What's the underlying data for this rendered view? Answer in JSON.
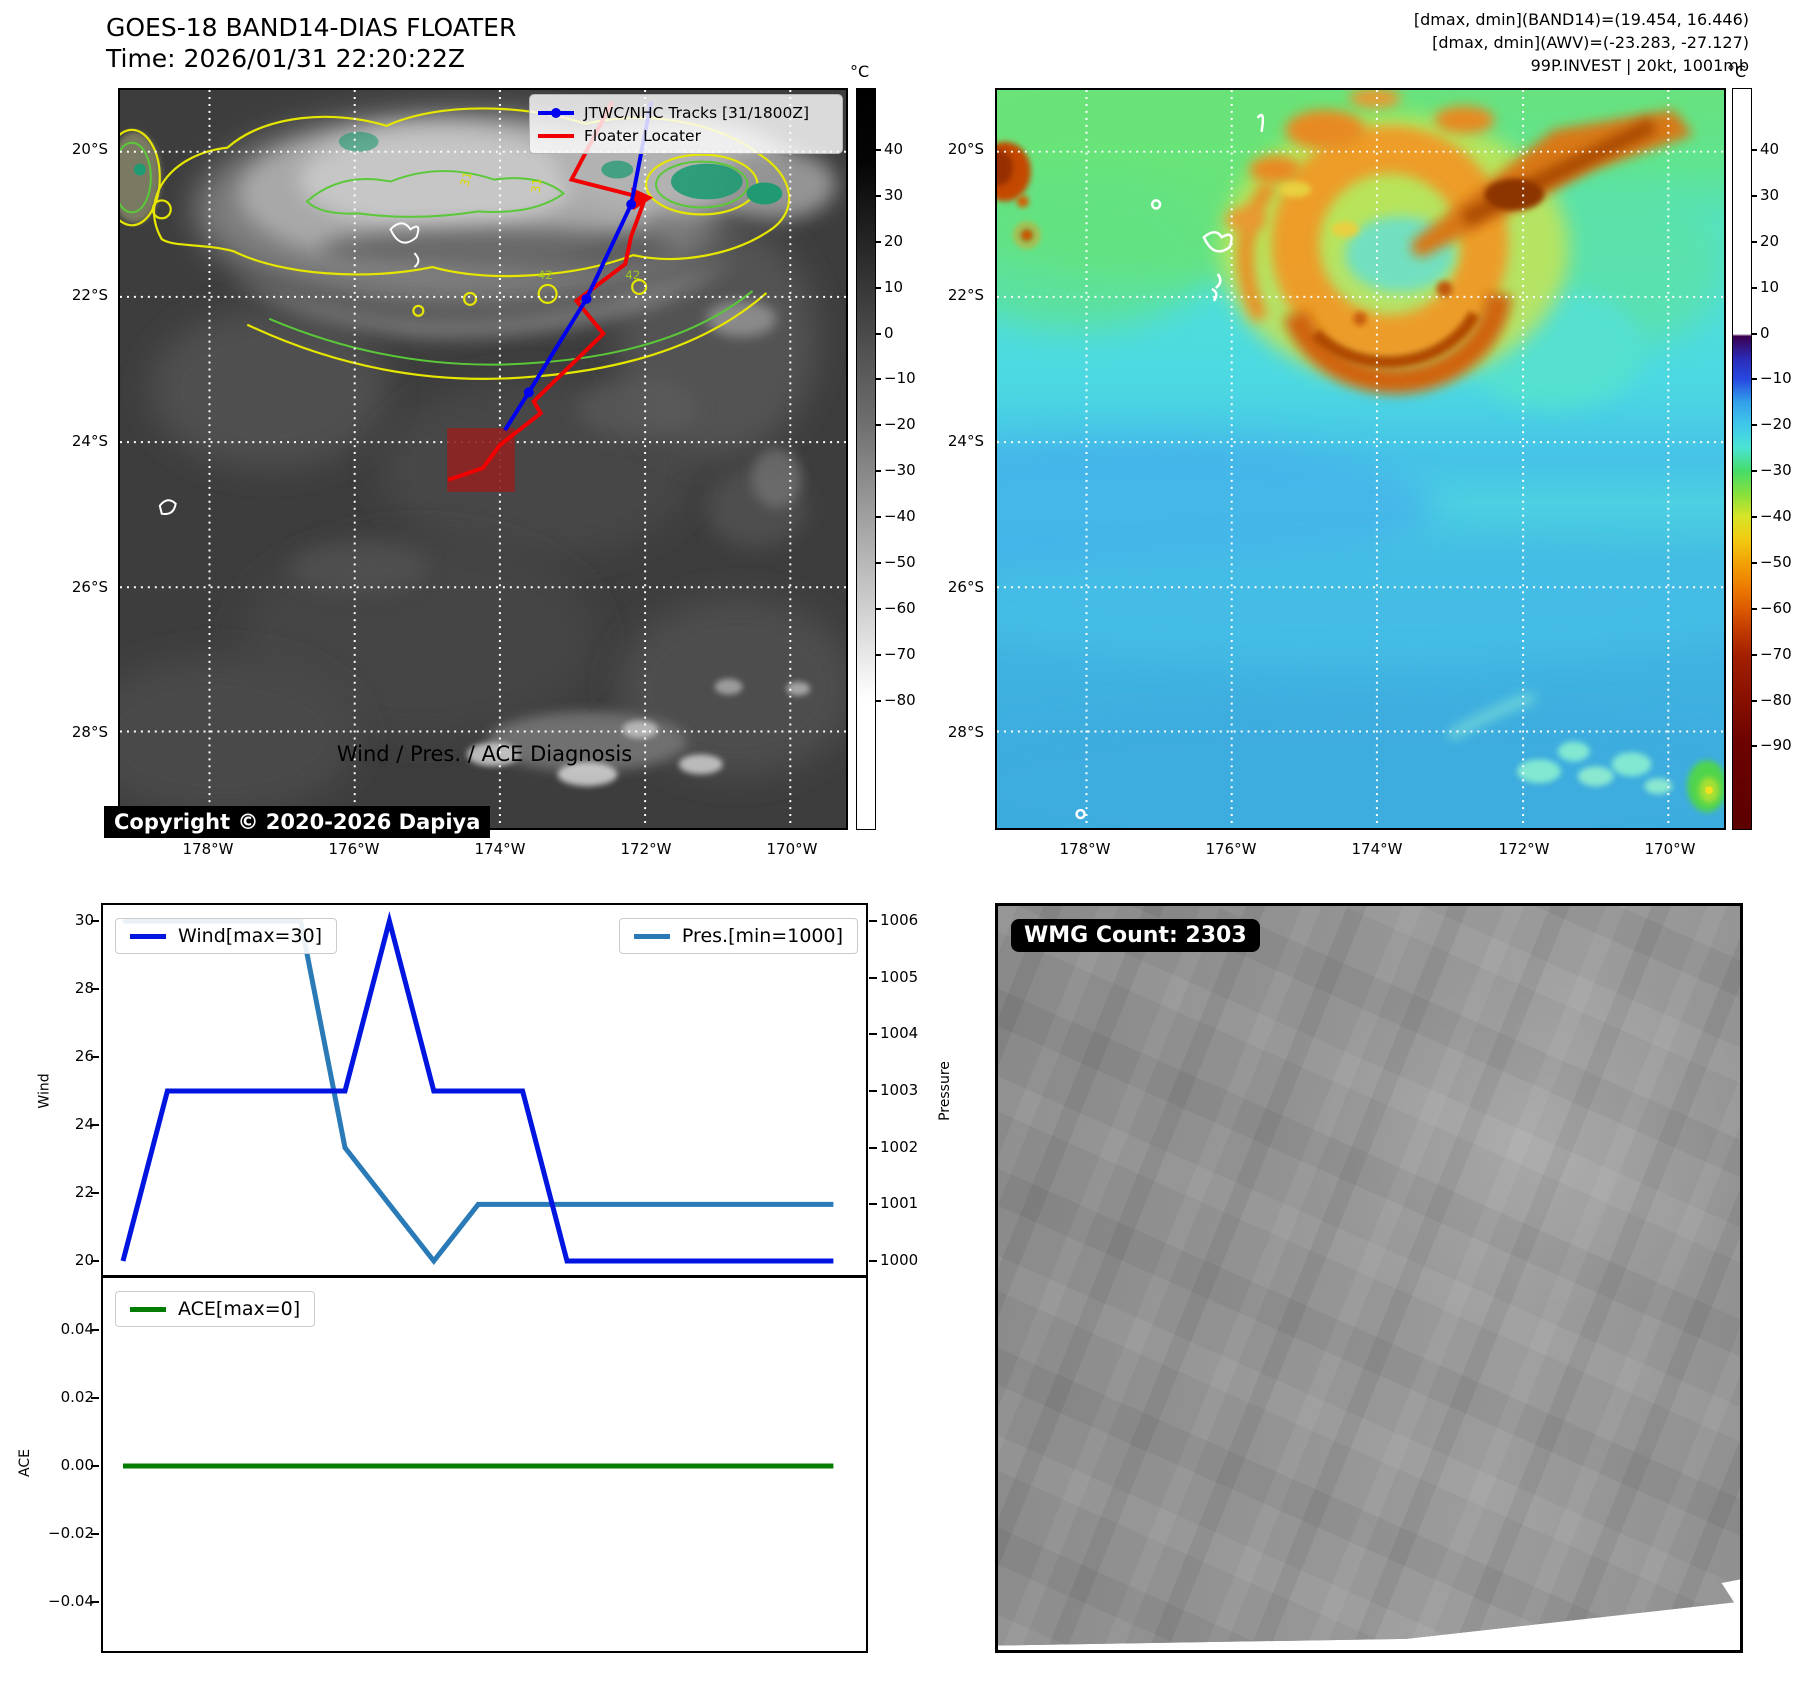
{
  "header": {
    "title": "GOES-18 BAND14-DIAS FLOATER",
    "time": "Time: 2026/01/31 22:20:22Z",
    "info_lines": [
      "[dmax, dmin](BAND14)=(19.454, 16.446)",
      "[dmax, dmin](AWV)=(-23.283, -27.127)",
      "99P.INVEST | 20kt, 1001mb"
    ]
  },
  "band14_map": {
    "legend": {
      "jtwc_label": "JTWC/NHC Tracks [31/1800Z]",
      "floater_label": "Floater Locater"
    },
    "copyright": "Copyright © 2020-2026 Dapiya",
    "lat_labels": [
      "20°S",
      "22°S",
      "24°S",
      "26°S",
      "28°S"
    ],
    "lon_labels": [
      "178°W",
      "176°W",
      "174°W",
      "172°W",
      "170°W"
    ],
    "contour_labels": [
      "31",
      "31",
      "42",
      "42"
    ],
    "track_color": "#0000f0",
    "floater_color": "#f00000",
    "colorbar": {
      "unit": "°C",
      "ticks": [
        "40",
        "30",
        "20",
        "10",
        "0",
        "−10",
        "−20",
        "−30",
        "−40",
        "−50",
        "−60",
        "−70",
        "−80"
      ]
    }
  },
  "awv_map": {
    "lat_labels": [
      "20°S",
      "22°S",
      "24°S",
      "26°S",
      "28°S"
    ],
    "lon_labels": [
      "178°W",
      "176°W",
      "174°W",
      "172°W",
      "170°W"
    ],
    "colorbar": {
      "unit": "°C",
      "ticks": [
        "40",
        "30",
        "20",
        "10",
        "0",
        "−10",
        "−20",
        "−30",
        "−40",
        "−50",
        "−60",
        "−70",
        "−80",
        "−90"
      ]
    }
  },
  "diagnosis": {
    "title": "Wind / Pres. / ACE Diagnosis",
    "wind": {
      "legend": "Wind[max=30]",
      "ylabel": "Wind",
      "yticks": [
        "30",
        "28",
        "26",
        "24",
        "22",
        "20"
      ],
      "color": "#0016e0"
    },
    "pressure": {
      "legend": "Pres.[min=1000]",
      "ylabel": "Pressure",
      "yticks": [
        "1006",
        "1005",
        "1004",
        "1003",
        "1002",
        "1001",
        "1000"
      ],
      "color": "#2a7ab8"
    },
    "ace": {
      "legend": "ACE[max=0]",
      "ylabel": "ACE",
      "yticks": [
        "0.04",
        "0.02",
        "0.00",
        "−0.02",
        "−0.04"
      ],
      "color": "#007d00"
    }
  },
  "wmg": {
    "count_label": "WMG Count: 2303"
  },
  "chart_data": [
    {
      "type": "line",
      "title": "Wind / Pres. / ACE Diagnosis",
      "x": [
        0,
        1,
        2,
        3,
        4,
        5,
        6,
        7,
        8,
        9,
        10,
        11,
        12,
        13,
        14,
        15,
        16
      ],
      "series": [
        {
          "name": "Wind[max=30]",
          "axis": "left",
          "color": "#0016e0",
          "ylim": [
            20,
            30
          ],
          "values": [
            20,
            25,
            25,
            25,
            25,
            25,
            30,
            25,
            25,
            25,
            20,
            20,
            20,
            20,
            20,
            20,
            20
          ]
        },
        {
          "name": "Pres.[min=1000]",
          "axis": "right",
          "color": "#2a7ab8",
          "ylim": [
            1000,
            1006
          ],
          "values": [
            1006,
            1006,
            1006,
            1006,
            1006,
            1002,
            1001,
            1000,
            1001,
            1001,
            1001,
            1001,
            1001,
            1001,
            1001,
            1001,
            1001
          ]
        }
      ],
      "left_ylabel": "Wind",
      "right_ylabel": "Pressure",
      "left_yticks": [
        30,
        28,
        26,
        24,
        22,
        20
      ],
      "right_yticks": [
        1006,
        1005,
        1004,
        1003,
        1002,
        1001,
        1000
      ],
      "grid": false,
      "legend_position": "top"
    },
    {
      "type": "line",
      "x": [
        0,
        1,
        2,
        3,
        4,
        5,
        6,
        7,
        8,
        9,
        10,
        11,
        12,
        13,
        14,
        15,
        16
      ],
      "series": [
        {
          "name": "ACE[max=0]",
          "color": "#007d00",
          "ylim": [
            -0.05,
            0.05
          ],
          "values": [
            0,
            0,
            0,
            0,
            0,
            0,
            0,
            0,
            0,
            0,
            0,
            0,
            0,
            0,
            0,
            0,
            0
          ]
        }
      ],
      "ylabel": "ACE",
      "yticks": [
        0.04,
        0.02,
        0.0,
        -0.02,
        -0.04
      ]
    }
  ]
}
